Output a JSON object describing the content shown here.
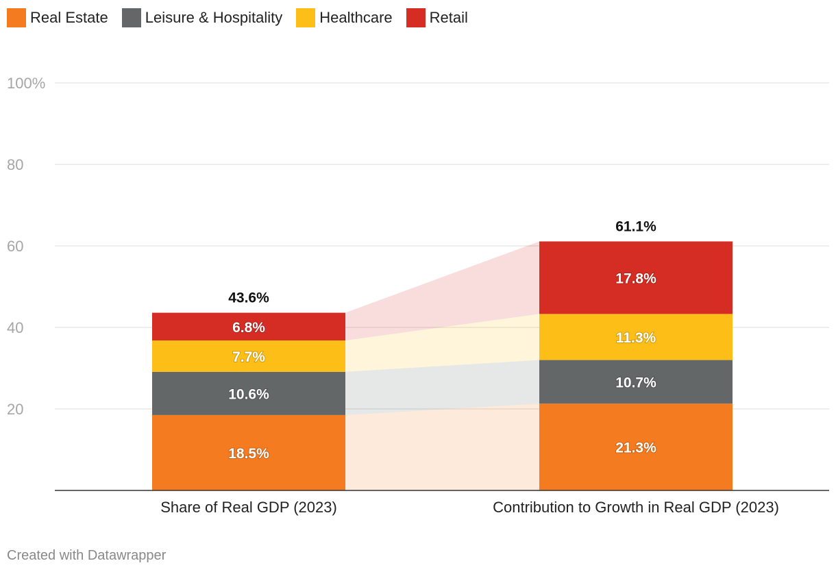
{
  "chart_data": {
    "type": "bar",
    "stacked": true,
    "categories": [
      "Share of Real GDP (2023)",
      "Contribution to Growth in Real GDP (2023)"
    ],
    "series": [
      {
        "name": "Real Estate",
        "color": "#f47b20",
        "values": [
          18.5,
          21.3
        ],
        "labels": [
          "18.5%",
          "21.3%"
        ]
      },
      {
        "name": "Leisure & Hospitality",
        "color": "#636767",
        "values": [
          10.6,
          10.7
        ],
        "labels": [
          "10.6%",
          "10.7%"
        ]
      },
      {
        "name": "Healthcare",
        "color": "#fdbe18",
        "values": [
          7.7,
          11.3
        ],
        "labels": [
          "7.7%",
          "11.3%"
        ]
      },
      {
        "name": "Retail",
        "color": "#d52d24",
        "values": [
          6.8,
          17.8
        ],
        "labels": [
          "6.8%",
          "17.8%"
        ]
      }
    ],
    "totals": [
      "43.6%",
      "61.1%"
    ],
    "ylim": [
      0,
      100
    ],
    "yticks": [
      20,
      40,
      60,
      80,
      100
    ],
    "ytick_labels": [
      "20",
      "40",
      "60",
      "80",
      "100%"
    ],
    "grid": true,
    "legend_position": "top-left",
    "credit": "Created with Datawrapper"
  }
}
